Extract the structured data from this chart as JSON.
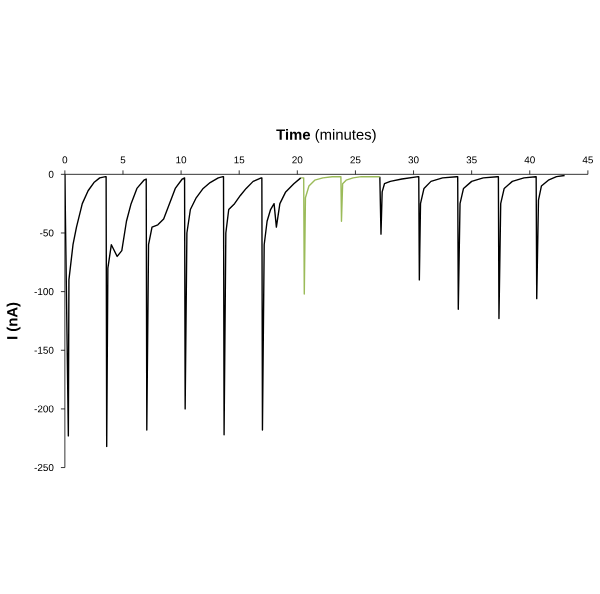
{
  "chart_data": {
    "type": "line",
    "xlabel": "**Time** (minutes)",
    "ylabel": "I (nA)",
    "xlim": [
      0,
      45
    ],
    "xticks": [
      0,
      5,
      10,
      15,
      20,
      25,
      30,
      35,
      40,
      45
    ],
    "ylim": [
      -250,
      0
    ],
    "yticks": [
      -250,
      -200,
      -150,
      -100,
      -50,
      0
    ],
    "grid": false,
    "marker": "none",
    "line_style": "solid",
    "series": [
      {
        "color": "#000000",
        "x": [
          0.0,
          0.3,
          0.35,
          0.7,
          1.0,
          1.5,
          2.0,
          2.5,
          3.0,
          3.5,
          3.55,
          3.6,
          3.7,
          4.0,
          4.5,
          4.9,
          5.3,
          5.7,
          6.2,
          6.8,
          7.0,
          7.05,
          7.2,
          7.5,
          8.0,
          8.5,
          9.0,
          9.5,
          10.1,
          10.3,
          10.35,
          10.5,
          10.8,
          11.3,
          11.9,
          12.5,
          13.2,
          13.6,
          13.65,
          13.7,
          13.85,
          14.1,
          14.6,
          15.1,
          15.6,
          16.2,
          16.9,
          16.95,
          17.0,
          17.15,
          17.4,
          17.7,
          18.0,
          18.2,
          18.5,
          19.0,
          19.7,
          20.3,
          23.7,
          27.1,
          27.2,
          27.3,
          27.5,
          28,
          29,
          30.4,
          30.45,
          30.5,
          30.6,
          30.9,
          31.5,
          32.5,
          33.7,
          33.8,
          33.85,
          34.0,
          34.3,
          35,
          36,
          37.2,
          37.3,
          37.35,
          37.5,
          37.8,
          38.5,
          39.5,
          40.5,
          40.55,
          40.6,
          40.75,
          41.0,
          41.6,
          42.3,
          43.0
        ],
        "values": [
          0,
          -223,
          -90,
          -60,
          -45,
          -25,
          -14,
          -7,
          -3,
          -2,
          -2,
          -232,
          -80,
          -60,
          -70,
          -65,
          -40,
          -25,
          -12,
          -5,
          -4,
          -218,
          -60,
          -45,
          -43,
          -38,
          -25,
          -12,
          -4,
          -3,
          -200,
          -50,
          -30,
          -20,
          -12,
          -7,
          -3,
          -2,
          -2,
          -222,
          -50,
          -30,
          -25,
          -18,
          -12,
          -6,
          -3,
          -3,
          -218,
          -60,
          -40,
          -30,
          -25,
          -45,
          -25,
          -15,
          -8,
          -3,
          null,
          -2,
          -51,
          -15,
          -8,
          -6,
          -4,
          -2,
          -2,
          -90,
          -25,
          -12,
          -6,
          -3,
          -2,
          -2,
          -115,
          -25,
          -12,
          -6,
          -3,
          -2,
          -2,
          -123,
          -25,
          -12,
          -6,
          -3,
          -2,
          -2,
          -106,
          -22,
          -10,
          -5,
          -2,
          -1
        ]
      },
      {
        "color": "#9bbb59",
        "x": [
          20.3,
          20.55,
          20.6,
          20.7,
          21.0,
          21.5,
          22.2,
          23.0,
          23.75,
          23.8,
          23.9,
          24.2,
          24.8,
          25.5,
          26.5,
          27.1
        ],
        "values": [
          -3,
          -3,
          -102,
          -20,
          -10,
          -5,
          -3,
          -2,
          -2,
          -40,
          -8,
          -5,
          -3,
          -2,
          -2,
          -2
        ]
      }
    ]
  }
}
